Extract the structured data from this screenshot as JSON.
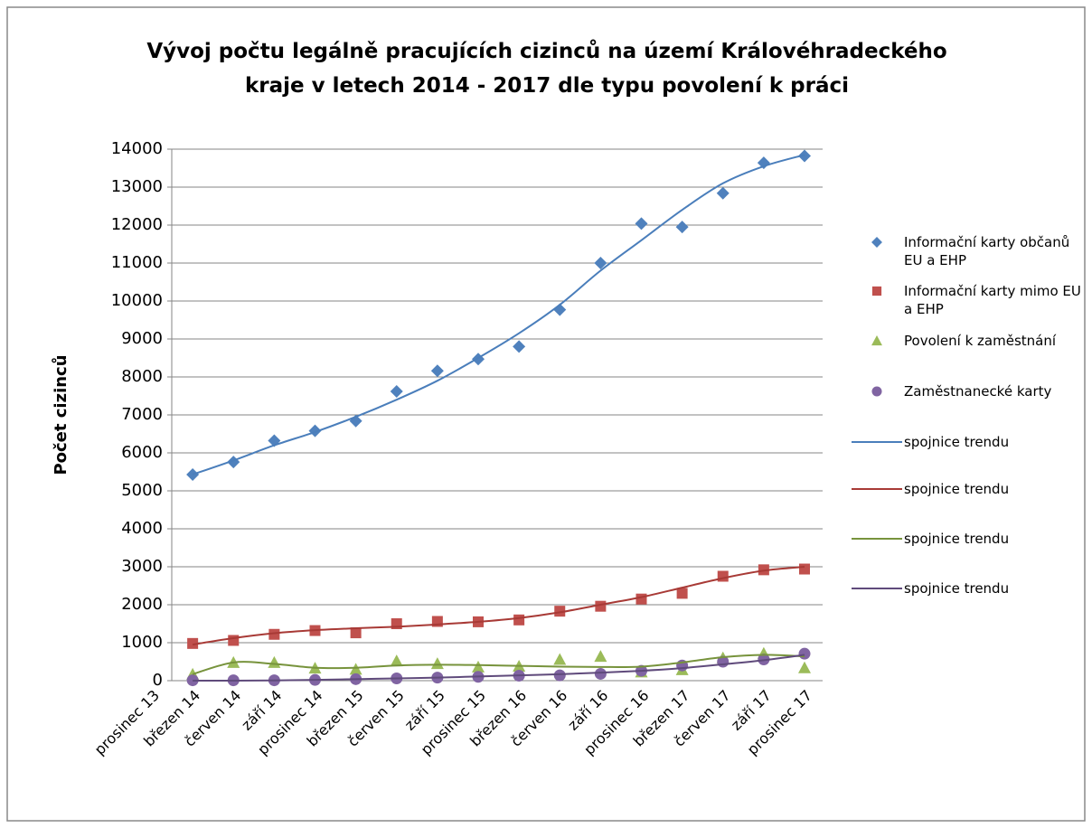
{
  "chart_data": {
    "type": "line",
    "title": "Vývoj počtu legálně pracujících cizinců na území Královéhradeckého kraje v letech 2014 - 2017 dle typu povolení k práci",
    "y_label": "Počet cizinců",
    "categories": [
      "prosinec 13",
      "březen 14",
      "červen 14",
      "září 14",
      "prosinec 14",
      "březen 15",
      "červen 15",
      "září 15",
      "prosinec 15",
      "březen 16",
      "červen 16",
      "září 16",
      "prosinec 16",
      "březen 17",
      "červen 17",
      "září 17",
      "prosinec 17"
    ],
    "ylim": [
      0,
      14000
    ],
    "yticks": [
      0,
      1000,
      2000,
      3000,
      4000,
      5000,
      6000,
      7000,
      8000,
      9000,
      10000,
      11000,
      12000,
      13000,
      14000
    ],
    "grid": true,
    "legend": "right",
    "series": [
      {
        "name": "Informační karty občanů EU a EHP",
        "color": "#4f81bd",
        "marker": "diamond",
        "values": [
          null,
          5430,
          5760,
          6320,
          6580,
          6840,
          7620,
          8160,
          8470,
          8800,
          9770,
          11000,
          12040,
          11950,
          12840,
          13640,
          13820
        ]
      },
      {
        "name": "Informační karty mimo EU a EHP",
        "color": "#c0504d",
        "marker": "square",
        "values": [
          null,
          980,
          1060,
          1220,
          1320,
          1260,
          1500,
          1560,
          1550,
          1600,
          1830,
          1960,
          2150,
          2300,
          2750,
          2920,
          2940
        ]
      },
      {
        "name": "Povolení k zaměstnání",
        "color": "#9bbb59",
        "marker": "triangle",
        "values": [
          null,
          170,
          480,
          480,
          330,
          300,
          520,
          450,
          360,
          380,
          560,
          640,
          230,
          290,
          600,
          720,
          340
        ]
      },
      {
        "name": "Zaměstnanecké karty",
        "color": "#8064a2",
        "marker": "circle",
        "values": [
          null,
          10,
          10,
          10,
          20,
          40,
          60,
          80,
          100,
          130,
          140,
          180,
          260,
          400,
          500,
          560,
          710
        ]
      },
      {
        "name": "spojnice trendu",
        "color": "#4a7ebb",
        "values": [
          null,
          5430,
          5800,
          6200,
          6550,
          6950,
          7400,
          7900,
          8500,
          9150,
          9900,
          10800,
          11600,
          12400,
          13100,
          13550,
          13850
        ]
      },
      {
        "name": "spojnice trendu",
        "color": "#a83a36",
        "values": [
          null,
          950,
          1120,
          1250,
          1330,
          1380,
          1420,
          1480,
          1550,
          1650,
          1800,
          2000,
          2200,
          2450,
          2700,
          2900,
          3000
        ]
      },
      {
        "name": "spojnice trendu",
        "color": "#77933c",
        "values": [
          null,
          170,
          480,
          440,
          340,
          340,
          400,
          420,
          410,
          390,
          370,
          360,
          370,
          480,
          620,
          680,
          640
        ]
      },
      {
        "name": "spojnice trendu",
        "color": "#5f4a7b",
        "values": [
          null,
          0,
          0,
          5,
          20,
          40,
          60,
          80,
          110,
          140,
          170,
          210,
          260,
          330,
          430,
          540,
          680
        ]
      }
    ]
  }
}
